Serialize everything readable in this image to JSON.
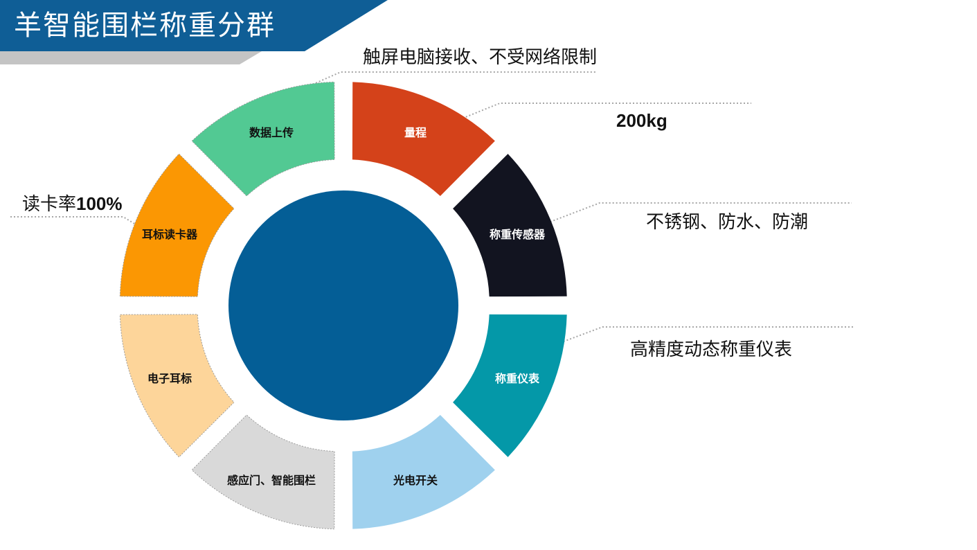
{
  "title": "羊智能围栏称重分群",
  "colors": {
    "header_blue": "#0f5e96",
    "header_gray": "#c4c4c4",
    "center_circle": "#045e96"
  },
  "segments": [
    {
      "label": "量程",
      "color": "#d4421a",
      "text_color": "#ffffff"
    },
    {
      "label": "称重传感器",
      "color": "#121420",
      "text_color": "#ffffff"
    },
    {
      "label": "称重仪表",
      "color": "#0498a8",
      "text_color": "#ffffff"
    },
    {
      "label": "光电开关",
      "color": "#9fd1ee",
      "text_color": "#111111"
    },
    {
      "label": "感应门、智能围栏",
      "color": "#d9d9d9",
      "text_color": "#111111"
    },
    {
      "label": "电子耳标",
      "color": "#fdd59a",
      "text_color": "#111111"
    },
    {
      "label": "耳标读卡器",
      "color": "#fb9703",
      "text_color": "#111111"
    },
    {
      "label": "数据上传",
      "color": "#52c993",
      "text_color": "#111111"
    }
  ],
  "callouts": {
    "touchscreen": "触屏电脑接收、不受网络限制",
    "range_value": "200kg",
    "sensor_desc": "不锈钢、防水、防潮",
    "instrument_desc": "高精度动态称重仪表",
    "read_rate_prefix": "读卡率",
    "read_rate_value": "100%"
  }
}
